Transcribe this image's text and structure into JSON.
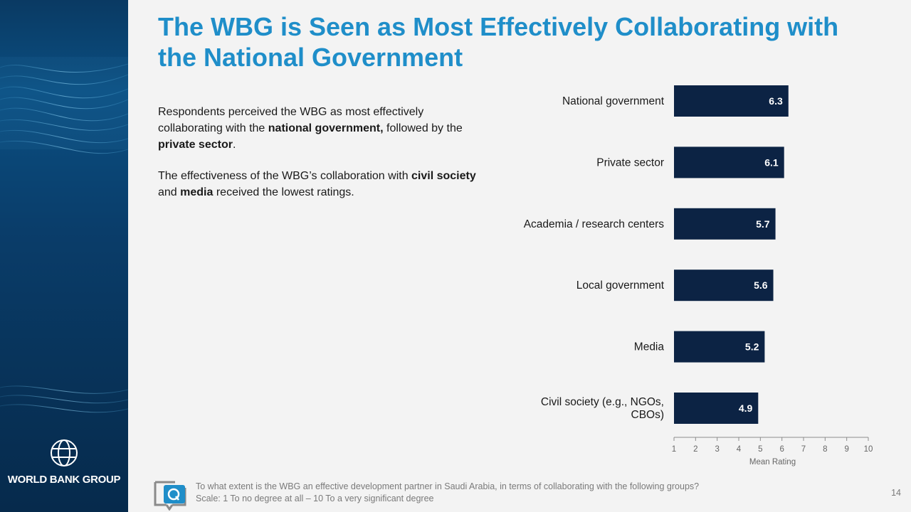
{
  "slide": {
    "title": "The WBG is Seen as Most Effectively Collaborating with the National Government",
    "page_number": "14"
  },
  "brand": {
    "logo_text": "WORLD BANK GROUP",
    "accent_color": "#1f8ec9",
    "bar_color": "#0c2344",
    "sidebar_color": "#0a3d6a"
  },
  "body": {
    "p1": {
      "t1": "Respondents perceived the WBG as most effectively collaborating with the ",
      "b1": "national government,",
      "t2": " followed by the ",
      "b2": "private sector",
      "t3": "."
    },
    "p2": {
      "t1": "The effectiveness of the WBG’s collaboration with ",
      "b1": "civil society",
      "t2": " and ",
      "b2": "media",
      "t3": " received the lowest ratings."
    }
  },
  "footnote": {
    "question": "To what extent is the WBG an effective development partner in Saudi Arabia, in terms of collaborating with the following groups?",
    "scale": "Scale: 1 To no degree at all – 10 To a very significant degree",
    "icon": "question-bubble-icon"
  },
  "chart_data": {
    "type": "bar",
    "orientation": "horizontal",
    "categories": [
      [
        "National government"
      ],
      [
        "Private sector"
      ],
      [
        "Academia / research centers"
      ],
      [
        "Local government"
      ],
      [
        "Media"
      ],
      [
        "Civil society (e.g., NGOs,",
        "CBOs)"
      ]
    ],
    "values": [
      6.3,
      6.1,
      5.7,
      5.6,
      5.2,
      4.9
    ],
    "value_labels": [
      "6.3",
      "6.1",
      "5.7",
      "5.6",
      "5.2",
      "4.9"
    ],
    "xlim": [
      1,
      10
    ],
    "ticks": [
      1,
      2,
      3,
      4,
      5,
      6,
      7,
      8,
      9,
      10
    ],
    "xlabel": "Mean Rating",
    "grid": false
  }
}
